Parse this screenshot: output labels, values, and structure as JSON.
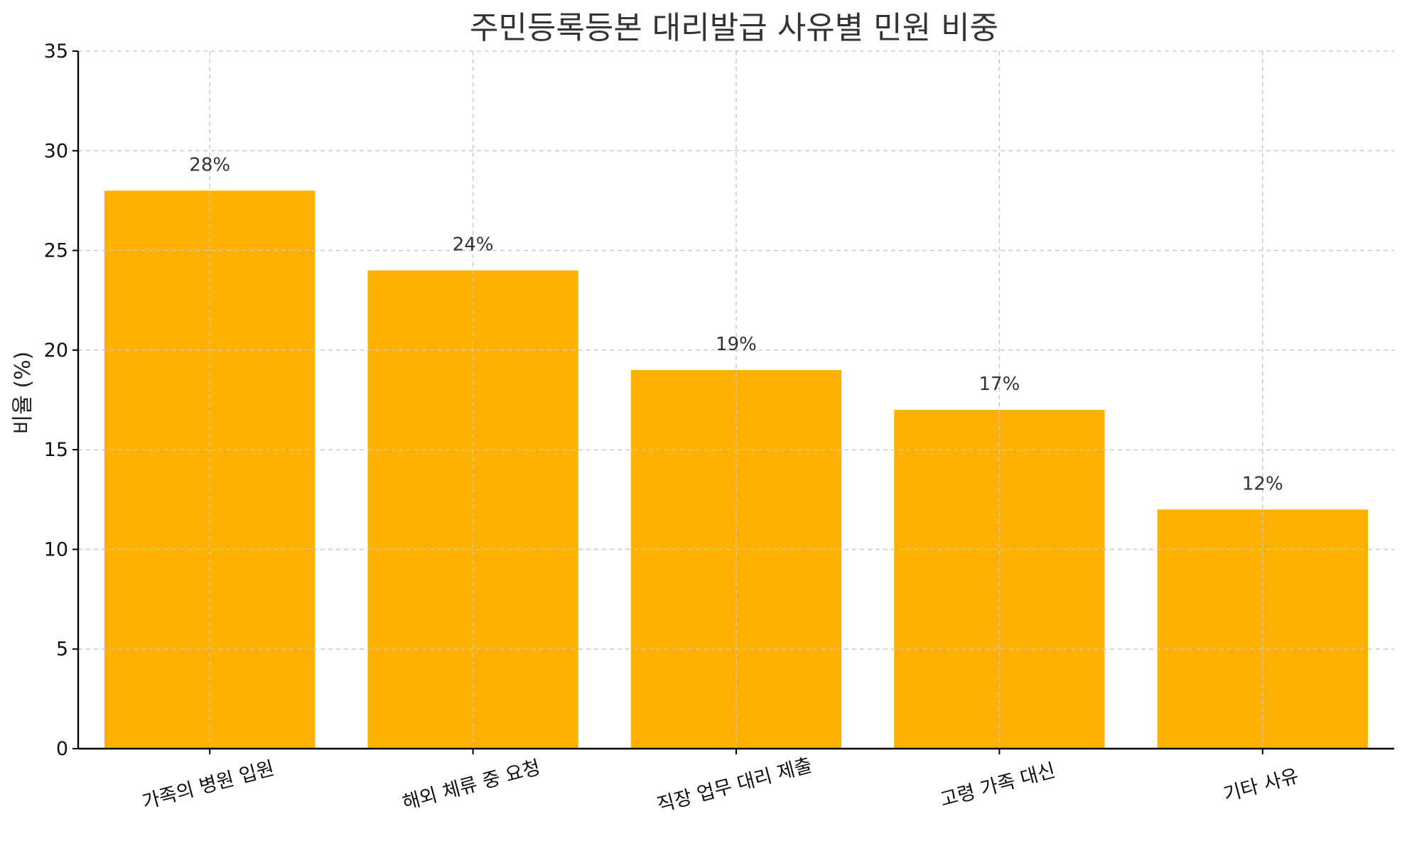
{
  "chart_data": {
    "type": "bar",
    "title": "주민등록등본 대리발급 사유별 민원 비중",
    "xlabel": "",
    "ylabel": "비율 (%)",
    "categories": [
      "가족의 병원 입원",
      "해외 체류 중 요청",
      "직장 업무 대리 제출",
      "고령 가족 대신",
      "기타 사유"
    ],
    "values": [
      28,
      24,
      19,
      17,
      12
    ],
    "data_labels": [
      "28%",
      "24%",
      "19%",
      "17%",
      "12%"
    ],
    "ylim": [
      0,
      35
    ],
    "yticks": [
      0,
      5,
      10,
      15,
      20,
      25,
      30,
      35
    ],
    "grid": true,
    "bar_color": "#FFB000",
    "x_tick_rotation_deg": 15
  }
}
